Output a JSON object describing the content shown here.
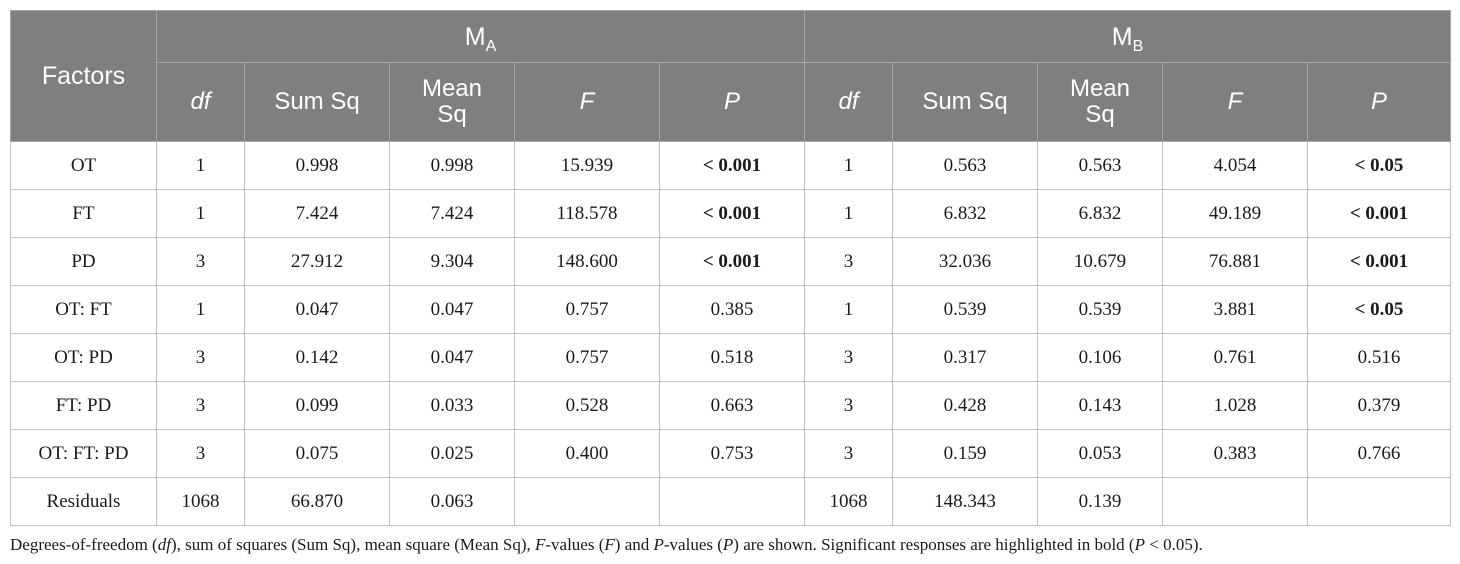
{
  "header": {
    "factors": "Factors",
    "group_a_main": "M",
    "group_a_sub": "A",
    "group_b_main": "M",
    "group_b_sub": "B",
    "columns": [
      "df",
      "Sum Sq",
      "Mean\nSq",
      "F",
      "P"
    ]
  },
  "rows": [
    {
      "factor": "OT",
      "a": [
        "1",
        "0.998",
        "0.998",
        "15.939",
        "< 0.001"
      ],
      "a_sig": true,
      "b": [
        "1",
        "0.563",
        "0.563",
        "4.054",
        "< 0.05"
      ],
      "b_sig": true
    },
    {
      "factor": "FT",
      "a": [
        "1",
        "7.424",
        "7.424",
        "118.578",
        "< 0.001"
      ],
      "a_sig": true,
      "b": [
        "1",
        "6.832",
        "6.832",
        "49.189",
        "< 0.001"
      ],
      "b_sig": true
    },
    {
      "factor": "PD",
      "a": [
        "3",
        "27.912",
        "9.304",
        "148.600",
        "< 0.001"
      ],
      "a_sig": true,
      "b": [
        "3",
        "32.036",
        "10.679",
        "76.881",
        "< 0.001"
      ],
      "b_sig": true
    },
    {
      "factor": "OT: FT",
      "a": [
        "1",
        "0.047",
        "0.047",
        "0.757",
        "0.385"
      ],
      "a_sig": false,
      "b": [
        "1",
        "0.539",
        "0.539",
        "3.881",
        "< 0.05"
      ],
      "b_sig": true
    },
    {
      "factor": "OT: PD",
      "a": [
        "3",
        "0.142",
        "0.047",
        "0.757",
        "0.518"
      ],
      "a_sig": false,
      "b": [
        "3",
        "0.317",
        "0.106",
        "0.761",
        "0.516"
      ],
      "b_sig": false
    },
    {
      "factor": "FT: PD",
      "a": [
        "3",
        "0.099",
        "0.033",
        "0.528",
        "0.663"
      ],
      "a_sig": false,
      "b": [
        "3",
        "0.428",
        "0.143",
        "1.028",
        "0.379"
      ],
      "b_sig": false
    },
    {
      "factor": "OT: FT: PD",
      "a": [
        "3",
        "0.075",
        "0.025",
        "0.400",
        "0.753"
      ],
      "a_sig": false,
      "b": [
        "3",
        "0.159",
        "0.053",
        "0.383",
        "0.766"
      ],
      "b_sig": false
    },
    {
      "factor": "Residuals",
      "a": [
        "1068",
        "66.870",
        "0.063",
        "",
        ""
      ],
      "a_sig": false,
      "b": [
        "1068",
        "148.343",
        "0.139",
        "",
        ""
      ],
      "b_sig": false
    }
  ],
  "footnote": {
    "p1": "Degrees-of-freedom (",
    "i1": "df",
    "p2": "), sum of squares (Sum Sq), mean square (Mean Sq), ",
    "i2": "F",
    "p3": "-values (",
    "i3": "F",
    "p4": ") and ",
    "i4": "P",
    "p5": "-values (",
    "i5": "P",
    "p6": ") are shown. Significant responses are highlighted in bold (",
    "i6": "P",
    "p7": " < 0.05)."
  }
}
